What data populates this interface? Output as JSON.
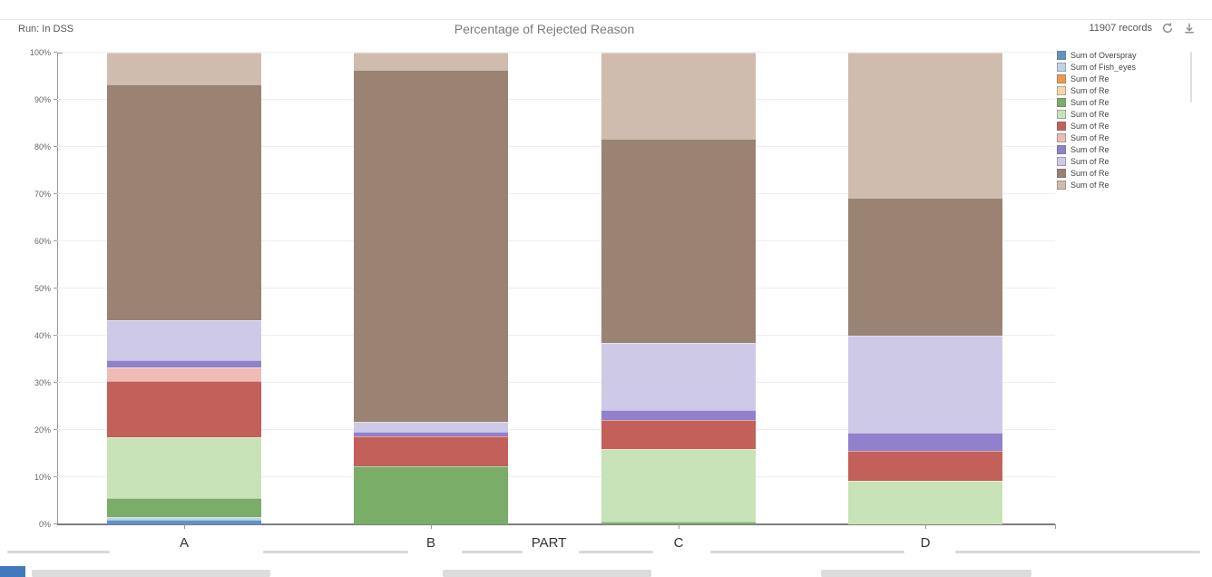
{
  "header": {
    "run_label": "Run: In DSS",
    "title": "Percentage of Rejected Reason",
    "records": "11907 records"
  },
  "icons": {
    "refresh": "refresh-icon",
    "download": "download-icon"
  },
  "chart_data": {
    "type": "bar",
    "stacked": true,
    "title": "Percentage of Rejected Reason",
    "categories": [
      "A",
      "B",
      "C",
      "D"
    ],
    "xlabel": "PART",
    "ylabel": "",
    "ylim": [
      0,
      100
    ],
    "y_ticks": [
      "0%",
      "10%",
      "20%",
      "30%",
      "40%",
      "50%",
      "60%",
      "70%",
      "80%",
      "90%",
      "100%"
    ],
    "grid": true,
    "legend_position": "right",
    "series": [
      {
        "name": "Sum of Overspray",
        "color": "#6292c5",
        "values": [
          1.0,
          0,
          0,
          0
        ]
      },
      {
        "name": "Sum of Fish_eyes",
        "color": "#bed3ec",
        "values": [
          0.5,
          0,
          0,
          0
        ]
      },
      {
        "name": "Sum of Re",
        "color": "#eb9b4d",
        "values": [
          0,
          0,
          0,
          0
        ]
      },
      {
        "name": "Sum of Re",
        "color": "#f7d8a9",
        "values": [
          0,
          0,
          0,
          0
        ]
      },
      {
        "name": "Sum of Re",
        "color": "#7aad68",
        "values": [
          4.0,
          12.3,
          0.5,
          0
        ]
      },
      {
        "name": "Sum of Re",
        "color": "#c8e3b7",
        "values": [
          13.0,
          0,
          15.5,
          9.2
        ]
      },
      {
        "name": "Sum of Re",
        "color": "#c36059",
        "values": [
          11.9,
          6.4,
          6.2,
          6.4
        ]
      },
      {
        "name": "Sum of Re",
        "color": "#eebcb5",
        "values": [
          2.9,
          0,
          0,
          0
        ]
      },
      {
        "name": "Sum of Re",
        "color": "#9180cb",
        "values": [
          1.5,
          1.0,
          2.1,
          3.8
        ]
      },
      {
        "name": "Sum of Re",
        "color": "#cfc9e8",
        "values": [
          8.5,
          2.0,
          14.2,
          20.6
        ]
      },
      {
        "name": "Sum of Re",
        "color": "#9a8373",
        "values": [
          50.0,
          74.7,
          43.3,
          29.2
        ]
      },
      {
        "name": "Sum of Re",
        "color": "#d0bcae",
        "values": [
          6.7,
          3.6,
          18.2,
          30.8
        ]
      }
    ]
  }
}
